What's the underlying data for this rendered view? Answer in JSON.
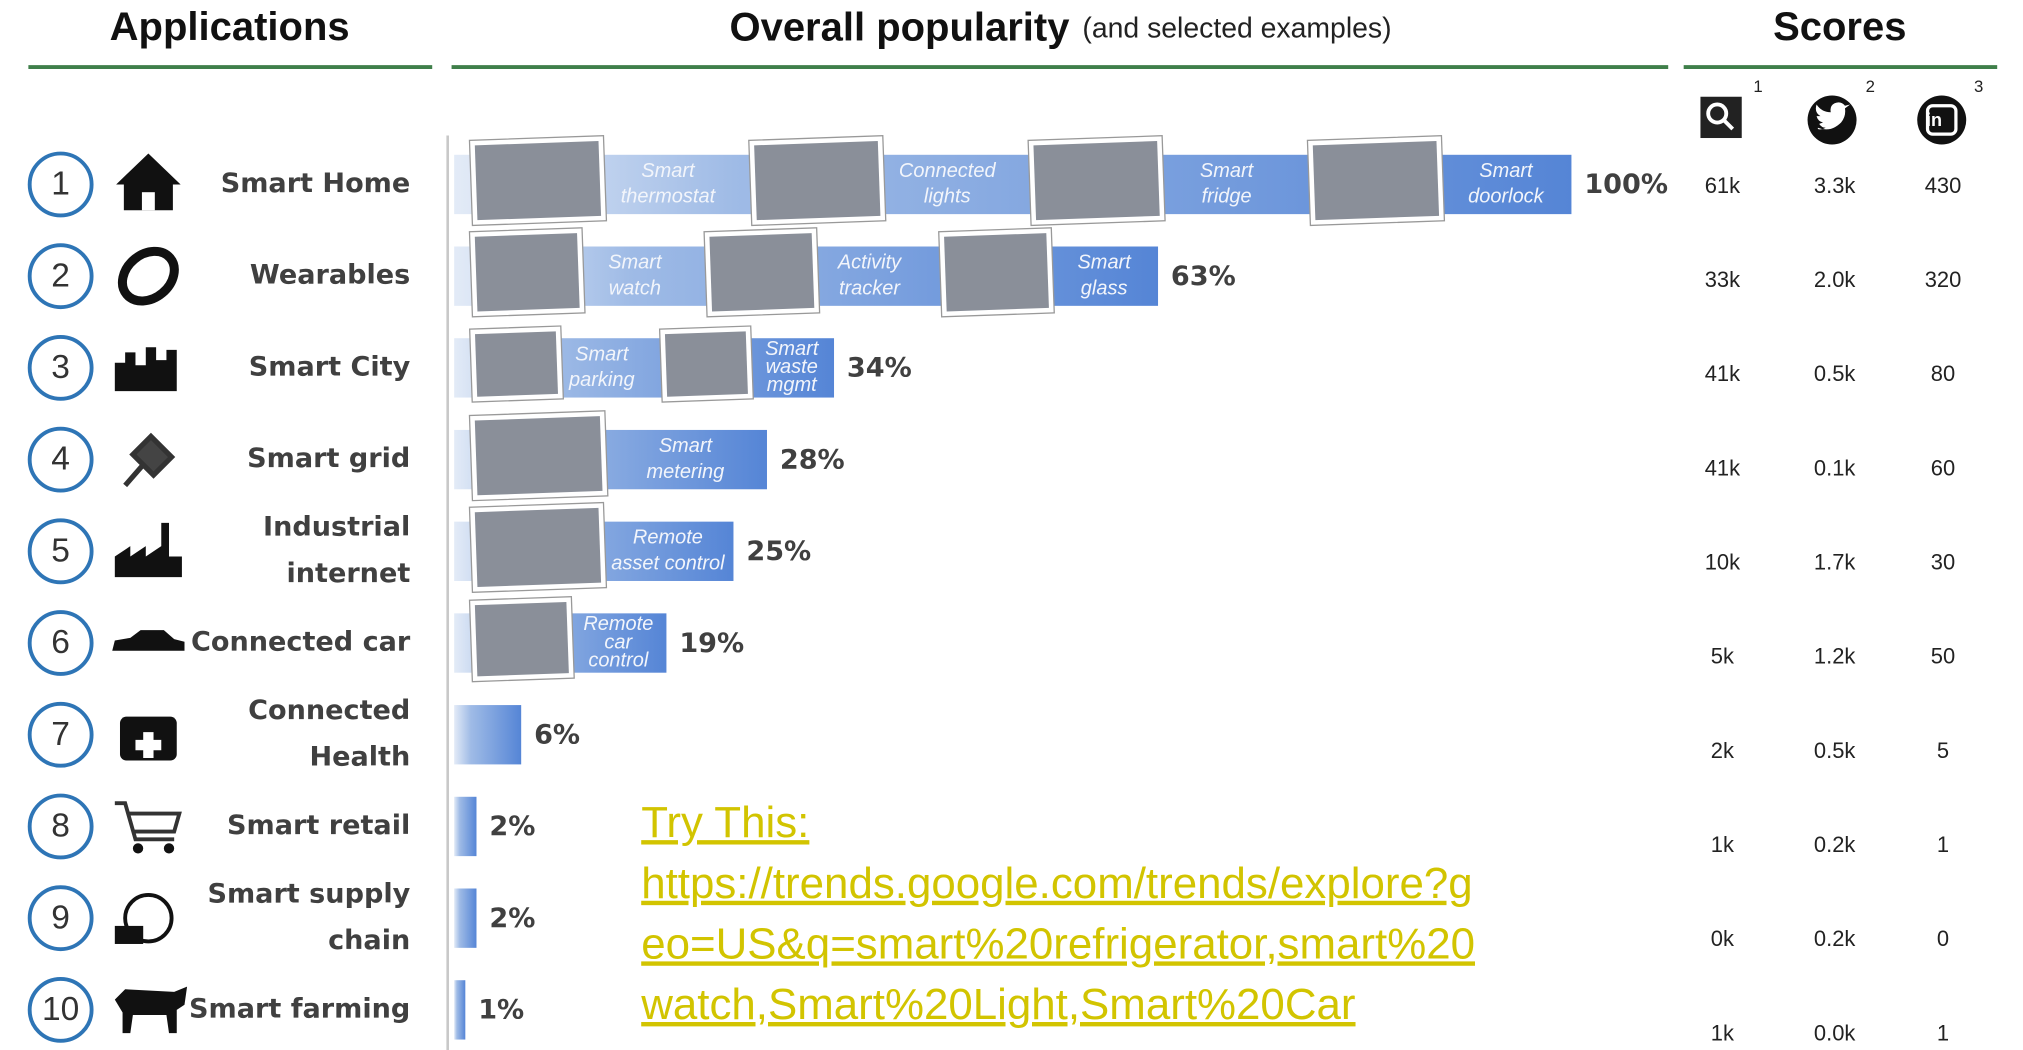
{
  "header": {
    "applications": "Applications",
    "popularity_title": "Overall popularity",
    "popularity_subtitle": "(and selected examples)",
    "scores": "Scores"
  },
  "score_columns": [
    {
      "note": "1"
    },
    {
      "note": "2"
    },
    {
      "note": "3"
    }
  ],
  "rows": [
    {
      "rank": 1,
      "name": [
        "Smart Home"
      ],
      "popularity": {
        "value": 100,
        "label": "100%"
      },
      "examples": [
        [
          "Smart",
          "thermostat"
        ],
        [
          "Connected",
          "lights"
        ],
        [
          "Smart",
          "fridge"
        ],
        [
          "Smart",
          "doorlock"
        ]
      ],
      "scores": [
        "61k",
        "3.3k",
        "430"
      ]
    },
    {
      "rank": 2,
      "name": [
        "Wearables"
      ],
      "popularity": {
        "value": 63,
        "label": "63%"
      },
      "examples": [
        [
          "Smart",
          "watch"
        ],
        [
          "Activity",
          "tracker"
        ],
        [
          "Smart",
          "glass"
        ]
      ],
      "scores": [
        "33k",
        "2.0k",
        "320"
      ]
    },
    {
      "rank": 3,
      "name": [
        "Smart City"
      ],
      "popularity": {
        "value": 34,
        "label": "34%"
      },
      "examples": [
        [
          "Smart",
          "parking"
        ],
        [
          "Smart",
          "waste",
          "mgmt"
        ]
      ],
      "scores": [
        "41k",
        "0.5k",
        "80"
      ]
    },
    {
      "rank": 4,
      "name": [
        "Smart grid"
      ],
      "popularity": {
        "value": 28,
        "label": "28%"
      },
      "examples": [
        [
          "Smart",
          "metering"
        ]
      ],
      "scores": [
        "41k",
        "0.1k",
        "60"
      ]
    },
    {
      "rank": 5,
      "name": [
        "Industrial",
        "internet"
      ],
      "popularity": {
        "value": 25,
        "label": "25%"
      },
      "examples": [
        [
          "Remote",
          "asset control"
        ]
      ],
      "scores": [
        "10k",
        "1.7k",
        "30"
      ]
    },
    {
      "rank": 6,
      "name": [
        "Connected car"
      ],
      "popularity": {
        "value": 19,
        "label": "19%"
      },
      "examples": [
        [
          "Remote",
          "car",
          "control"
        ]
      ],
      "scores": [
        "5k",
        "1.2k",
        "50"
      ]
    },
    {
      "rank": 7,
      "name": [
        "Connected",
        "Health"
      ],
      "popularity": {
        "value": 6,
        "label": "6%"
      },
      "examples": [],
      "scores": [
        "2k",
        "0.5k",
        "5"
      ]
    },
    {
      "rank": 8,
      "name": [
        "Smart retail"
      ],
      "popularity": {
        "value": 2,
        "label": "2%"
      },
      "examples": [],
      "scores": [
        "1k",
        "0.2k",
        "1"
      ]
    },
    {
      "rank": 9,
      "name": [
        "Smart supply",
        "chain"
      ],
      "popularity": {
        "value": 2,
        "label": "2%"
      },
      "examples": [],
      "scores": [
        "0k",
        "0.2k",
        "0"
      ]
    },
    {
      "rank": 10,
      "name": [
        "Smart farming"
      ],
      "popularity": {
        "value": 1,
        "label": "1%"
      },
      "examples": [],
      "scores": [
        "1k",
        "0.0k",
        "1"
      ]
    }
  ],
  "link": {
    "lines": [
      "Try This:",
      "https://trends.google.com/trends/explore?g",
      "eo=US&q=smart%20refrigerator,smart%20",
      "watch,Smart%20Light,Smart%20Car"
    ]
  }
}
